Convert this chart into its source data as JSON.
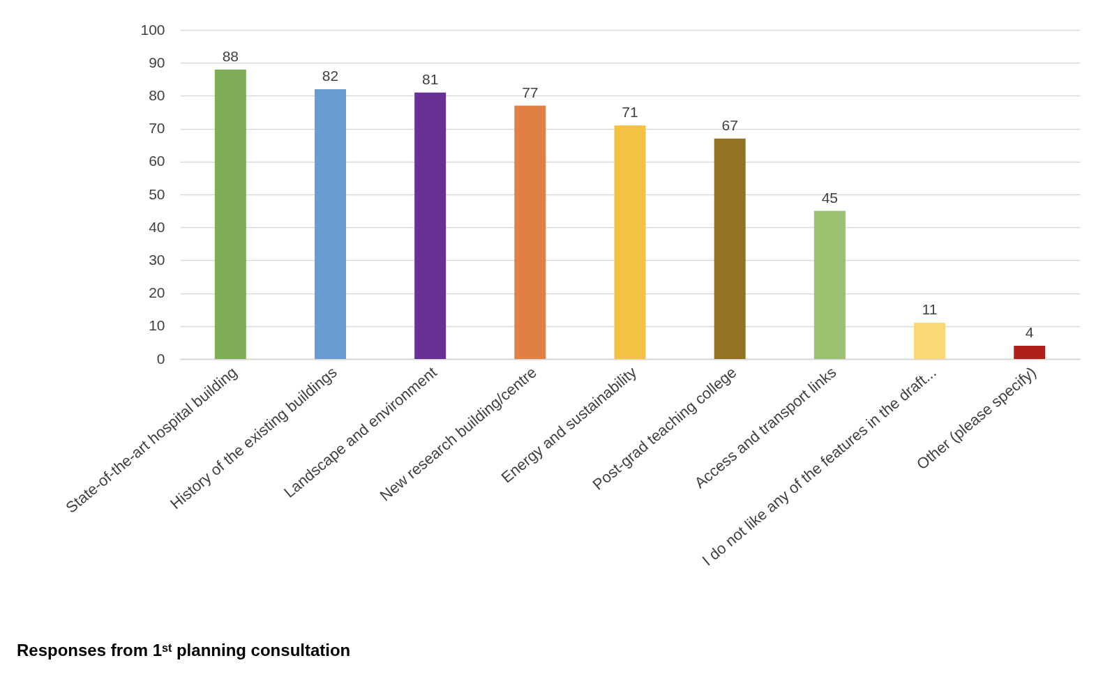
{
  "chart_data": {
    "type": "bar",
    "title": "Responses from 1ˢᵗ planning consultation",
    "categories": [
      "State-of-the-art hospital building",
      "History of the existing buildings",
      "Landscape and environment",
      "New research building/centre",
      "Energy and sustainability",
      "Post-grad teaching college",
      "Access and transport links",
      "I do not like any of the features in the draft...",
      "Other (please specify)"
    ],
    "values": [
      88,
      82,
      81,
      77,
      71,
      67,
      45,
      11,
      4
    ],
    "colors": [
      "#7fac56",
      "#6a9bd1",
      "#673293",
      "#e08042",
      "#f4c242",
      "#937423",
      "#9bc171",
      "#f8d877",
      "#b01f1a"
    ],
    "ylim": [
      0,
      100
    ],
    "yticks": [
      0,
      10,
      20,
      30,
      40,
      50,
      60,
      70,
      80,
      90,
      100
    ],
    "grid": "y",
    "data_labels": true
  }
}
